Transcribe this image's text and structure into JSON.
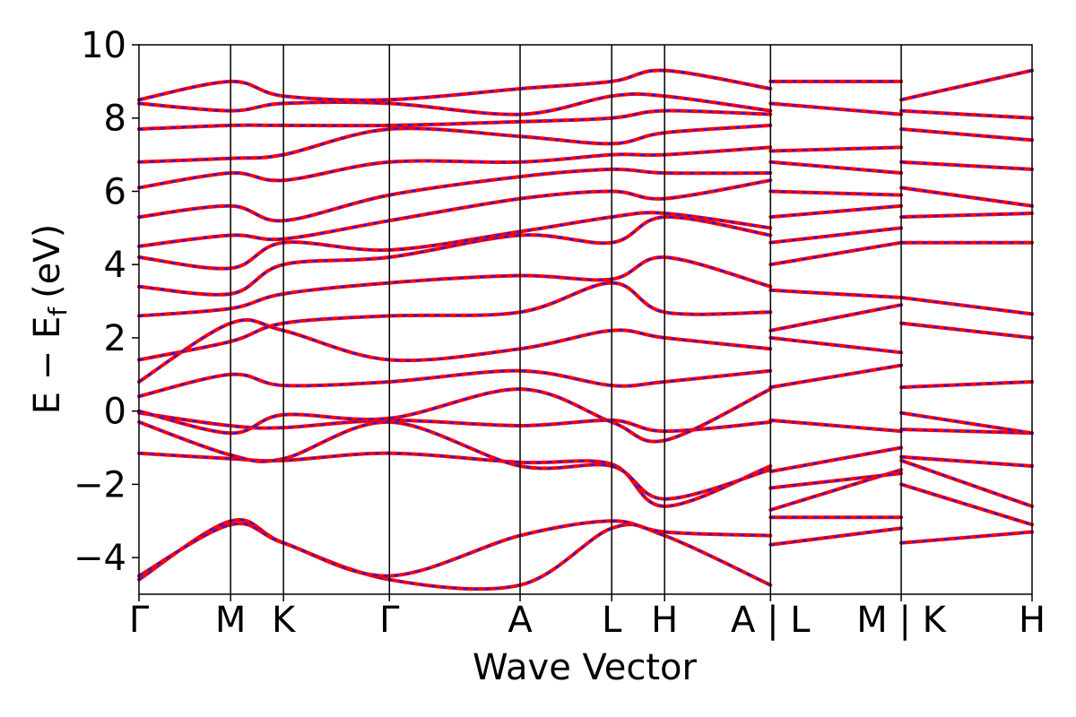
{
  "chart_data": {
    "type": "line",
    "title": "",
    "xlabel": "Wave Vector",
    "ylabel": "E − E",
    "ylabel_subscript": "f",
    "ylabel_unit": "(eV)",
    "ylim": [
      -5,
      10
    ],
    "yticks": [
      -4,
      -2,
      0,
      2,
      4,
      6,
      8,
      10
    ],
    "ytick_labels": [
      "−4",
      "−2",
      "0",
      "2",
      "4",
      "6",
      "8",
      "10"
    ],
    "kpath_ticks": [
      {
        "label": "Γ",
        "x": 0.0
      },
      {
        "label": "M",
        "x": 0.577
      },
      {
        "label": "K",
        "x": 0.91
      },
      {
        "label": "Γ",
        "x": 1.577
      },
      {
        "label": "A",
        "x": 2.4
      },
      {
        "label": "L",
        "x": 2.977
      },
      {
        "label": "H",
        "x": 3.31
      },
      {
        "label": "A | L",
        "x": 3.977
      },
      {
        "label": "M | K",
        "x": 4.8
      },
      {
        "label": "H",
        "x": 5.624
      }
    ],
    "xlim": [
      0.0,
      5.624
    ],
    "grid": false,
    "series_colors": {
      "band_red": "#ff0000",
      "band_blue": "#1a1aff"
    },
    "series": [
      {
        "segment": "Γ-M-K-Γ-A-L-H-A",
        "x": [
          0.0,
          0.577,
          0.91,
          1.577,
          2.4,
          2.977,
          3.31,
          3.977
        ],
        "values": [
          -4.6,
          -3.0,
          -3.6,
          -4.6,
          -4.75,
          -3.2,
          -3.4,
          -4.75
        ]
      },
      {
        "segment": "Γ-M-K-Γ-A-L-H-A",
        "x": [
          0.0,
          0.577,
          0.91,
          1.577,
          2.4,
          2.977,
          3.31,
          3.977
        ],
        "values": [
          -4.5,
          -3.1,
          -3.6,
          -4.5,
          -3.4,
          -3.0,
          -3.3,
          -3.4
        ]
      },
      {
        "segment": "Γ-M-K-Γ-A-L-H-A",
        "x": [
          0.0,
          0.577,
          0.91,
          1.577,
          2.4,
          2.977,
          3.31,
          3.977
        ],
        "values": [
          -1.15,
          -1.3,
          -1.35,
          -1.15,
          -1.4,
          -1.45,
          -2.6,
          -1.5
        ]
      },
      {
        "segment": "Γ-M-K-Γ-A-L-H-A",
        "x": [
          0.0,
          0.577,
          0.91,
          1.577,
          2.4,
          2.977,
          3.31,
          3.977
        ],
        "values": [
          -0.3,
          -1.2,
          -1.3,
          -0.3,
          -1.5,
          -1.5,
          -2.4,
          -1.6
        ]
      },
      {
        "segment": "Γ-M-K-Γ-A-L-H-A",
        "x": [
          0.0,
          0.577,
          0.91,
          1.577,
          2.4,
          2.977,
          3.31,
          3.977
        ],
        "values": [
          -0.05,
          -0.4,
          -0.45,
          -0.25,
          -0.4,
          -0.25,
          -0.55,
          -0.3
        ]
      },
      {
        "segment": "Γ-M-K-Γ-A-L-H-A",
        "x": [
          0.0,
          0.577,
          0.91,
          1.577,
          2.4,
          2.977,
          3.31,
          3.977
        ],
        "values": [
          0.0,
          -0.6,
          -0.1,
          -0.2,
          0.6,
          -0.3,
          -0.8,
          0.6
        ]
      },
      {
        "segment": "Γ-M-K-Γ-A-L-H-A",
        "x": [
          0.0,
          0.577,
          0.91,
          1.577,
          2.4,
          2.977,
          3.31,
          3.977
        ],
        "values": [
          0.4,
          1.0,
          0.7,
          0.8,
          1.1,
          0.7,
          0.8,
          1.1
        ]
      },
      {
        "segment": "Γ-M-K-Γ-A-L-H-A",
        "x": [
          0.0,
          0.577,
          0.91,
          1.577,
          2.4,
          2.977,
          3.31,
          3.977
        ],
        "values": [
          0.8,
          2.4,
          2.2,
          1.4,
          1.7,
          2.2,
          2.0,
          1.7
        ]
      },
      {
        "segment": "Γ-M-K-Γ-A-L-H-A",
        "x": [
          0.0,
          0.577,
          0.91,
          1.577,
          2.4,
          2.977,
          3.31,
          3.977
        ],
        "values": [
          1.4,
          1.9,
          2.4,
          2.6,
          2.7,
          3.5,
          2.7,
          2.7
        ]
      },
      {
        "segment": "Γ-M-K-Γ-A-L-H-A",
        "x": [
          0.0,
          0.577,
          0.91,
          1.577,
          2.4,
          2.977,
          3.31,
          3.977
        ],
        "values": [
          2.6,
          2.8,
          3.2,
          3.5,
          3.7,
          3.6,
          4.2,
          3.4
        ]
      },
      {
        "segment": "Γ-M-K-Γ-A-L-H-A",
        "x": [
          0.0,
          0.577,
          0.91,
          1.577,
          2.4,
          2.977,
          3.31,
          3.977
        ],
        "values": [
          3.4,
          3.2,
          4.0,
          4.2,
          4.8,
          4.6,
          5.3,
          4.8
        ]
      },
      {
        "segment": "Γ-M-K-Γ-A-L-H-A",
        "x": [
          0.0,
          0.577,
          0.91,
          1.577,
          2.4,
          2.977,
          3.31,
          3.977
        ],
        "values": [
          4.2,
          3.9,
          4.6,
          4.4,
          4.9,
          5.3,
          5.4,
          5.0
        ]
      },
      {
        "segment": "Γ-M-K-Γ-A-L-H-A",
        "x": [
          0.0,
          0.577,
          0.91,
          1.577,
          2.4,
          2.977,
          3.31,
          3.977
        ],
        "values": [
          4.5,
          4.8,
          4.7,
          5.2,
          5.8,
          6.0,
          5.8,
          6.3
        ]
      },
      {
        "segment": "Γ-M-K-Γ-A-L-H-A",
        "x": [
          0.0,
          0.577,
          0.91,
          1.577,
          2.4,
          2.977,
          3.31,
          3.977
        ],
        "values": [
          5.3,
          5.6,
          5.2,
          5.9,
          6.4,
          6.6,
          6.5,
          6.5
        ]
      },
      {
        "segment": "Γ-M-K-Γ-A-L-H-A",
        "x": [
          0.0,
          0.577,
          0.91,
          1.577,
          2.4,
          2.977,
          3.31,
          3.977
        ],
        "values": [
          6.1,
          6.5,
          6.3,
          6.8,
          6.8,
          7.0,
          7.0,
          7.2
        ]
      },
      {
        "segment": "Γ-M-K-Γ-A-L-H-A",
        "x": [
          0.0,
          0.577,
          0.91,
          1.577,
          2.4,
          2.977,
          3.31,
          3.977
        ],
        "values": [
          6.8,
          6.9,
          7.0,
          7.7,
          7.5,
          7.3,
          7.6,
          7.8
        ]
      },
      {
        "segment": "Γ-M-K-Γ-A-L-H-A",
        "x": [
          0.0,
          0.577,
          0.91,
          1.577,
          2.4,
          2.977,
          3.31,
          3.977
        ],
        "values": [
          7.7,
          7.8,
          7.8,
          7.8,
          7.9,
          8.0,
          8.2,
          8.1
        ]
      },
      {
        "segment": "Γ-M-K-Γ-A-L-H-A",
        "x": [
          0.0,
          0.577,
          0.91,
          1.577,
          2.4,
          2.977,
          3.31,
          3.977
        ],
        "values": [
          8.4,
          8.2,
          8.4,
          8.4,
          8.1,
          8.6,
          8.6,
          8.2
        ]
      },
      {
        "segment": "Γ-M-K-Γ-A-L-H-A",
        "x": [
          0.0,
          0.577,
          0.91,
          1.577,
          2.4,
          2.977,
          3.31,
          3.977
        ],
        "values": [
          8.5,
          9.0,
          8.6,
          8.5,
          8.8,
          9.0,
          9.3,
          8.8
        ]
      },
      {
        "segment": "L-M",
        "x": [
          3.977,
          4.8
        ],
        "values": [
          -3.65,
          -3.2
        ]
      },
      {
        "segment": "L-M",
        "x": [
          3.977,
          4.8
        ],
        "values": [
          -2.9,
          -2.9
        ]
      },
      {
        "segment": "L-M",
        "x": [
          3.977,
          4.8
        ],
        "values": [
          -2.7,
          -1.6
        ]
      },
      {
        "segment": "L-M",
        "x": [
          3.977,
          4.8
        ],
        "values": [
          -2.1,
          -1.7
        ]
      },
      {
        "segment": "L-M",
        "x": [
          3.977,
          4.8
        ],
        "values": [
          -1.65,
          -1.0
        ]
      },
      {
        "segment": "L-M",
        "x": [
          3.977,
          4.8
        ],
        "values": [
          -0.25,
          -0.55
        ]
      },
      {
        "segment": "L-M",
        "x": [
          3.977,
          4.8
        ],
        "values": [
          0.65,
          1.25
        ]
      },
      {
        "segment": "L-M",
        "x": [
          3.977,
          4.8
        ],
        "values": [
          2.0,
          1.6
        ]
      },
      {
        "segment": "L-M",
        "x": [
          3.977,
          4.8
        ],
        "values": [
          2.2,
          2.9
        ]
      },
      {
        "segment": "L-M",
        "x": [
          3.977,
          4.8
        ],
        "values": [
          3.3,
          3.1
        ]
      },
      {
        "segment": "L-M",
        "x": [
          3.977,
          4.8
        ],
        "values": [
          4.0,
          4.6
        ]
      },
      {
        "segment": "L-M",
        "x": [
          3.977,
          4.8
        ],
        "values": [
          4.6,
          5.0
        ]
      },
      {
        "segment": "L-M",
        "x": [
          3.977,
          4.8
        ],
        "values": [
          5.3,
          5.6
        ]
      },
      {
        "segment": "L-M",
        "x": [
          3.977,
          4.8
        ],
        "values": [
          6.0,
          5.9
        ]
      },
      {
        "segment": "L-M",
        "x": [
          3.977,
          4.8
        ],
        "values": [
          6.8,
          6.5
        ]
      },
      {
        "segment": "L-M",
        "x": [
          3.977,
          4.8
        ],
        "values": [
          7.1,
          7.2
        ]
      },
      {
        "segment": "L-M",
        "x": [
          3.977,
          4.8
        ],
        "values": [
          8.4,
          8.1
        ]
      },
      {
        "segment": "L-M",
        "x": [
          3.977,
          4.8
        ],
        "values": [
          9.0,
          9.0
        ]
      },
      {
        "segment": "K-H",
        "x": [
          4.8,
          5.624
        ],
        "values": [
          -3.6,
          -3.3
        ]
      },
      {
        "segment": "K-H",
        "x": [
          4.8,
          5.624
        ],
        "values": [
          -2.0,
          -3.1
        ]
      },
      {
        "segment": "K-H",
        "x": [
          4.8,
          5.624
        ],
        "values": [
          -1.35,
          -2.6
        ]
      },
      {
        "segment": "K-H",
        "x": [
          4.8,
          5.624
        ],
        "values": [
          -1.25,
          -1.5
        ]
      },
      {
        "segment": "K-H",
        "x": [
          4.8,
          5.624
        ],
        "values": [
          -0.5,
          -0.6
        ]
      },
      {
        "segment": "K-H",
        "x": [
          4.8,
          5.624
        ],
        "values": [
          -0.05,
          -0.6
        ]
      },
      {
        "segment": "K-H",
        "x": [
          4.8,
          5.624
        ],
        "values": [
          0.65,
          0.8
        ]
      },
      {
        "segment": "K-H",
        "x": [
          4.8,
          5.624
        ],
        "values": [
          2.4,
          2.0
        ]
      },
      {
        "segment": "K-H",
        "x": [
          4.8,
          5.624
        ],
        "values": [
          3.1,
          2.65
        ]
      },
      {
        "segment": "K-H",
        "x": [
          4.8,
          5.624
        ],
        "values": [
          4.6,
          4.6
        ]
      },
      {
        "segment": "K-H",
        "x": [
          4.8,
          5.624
        ],
        "values": [
          5.3,
          5.4
        ]
      },
      {
        "segment": "K-H",
        "x": [
          4.8,
          5.624
        ],
        "values": [
          6.1,
          5.6
        ]
      },
      {
        "segment": "K-H",
        "x": [
          4.8,
          5.624
        ],
        "values": [
          6.8,
          6.6
        ]
      },
      {
        "segment": "K-H",
        "x": [
          4.8,
          5.624
        ],
        "values": [
          7.7,
          7.4
        ]
      },
      {
        "segment": "K-H",
        "x": [
          4.8,
          5.624
        ],
        "values": [
          8.2,
          8.0
        ]
      },
      {
        "segment": "K-H",
        "x": [
          4.8,
          5.624
        ],
        "values": [
          8.5,
          9.3
        ]
      }
    ]
  }
}
